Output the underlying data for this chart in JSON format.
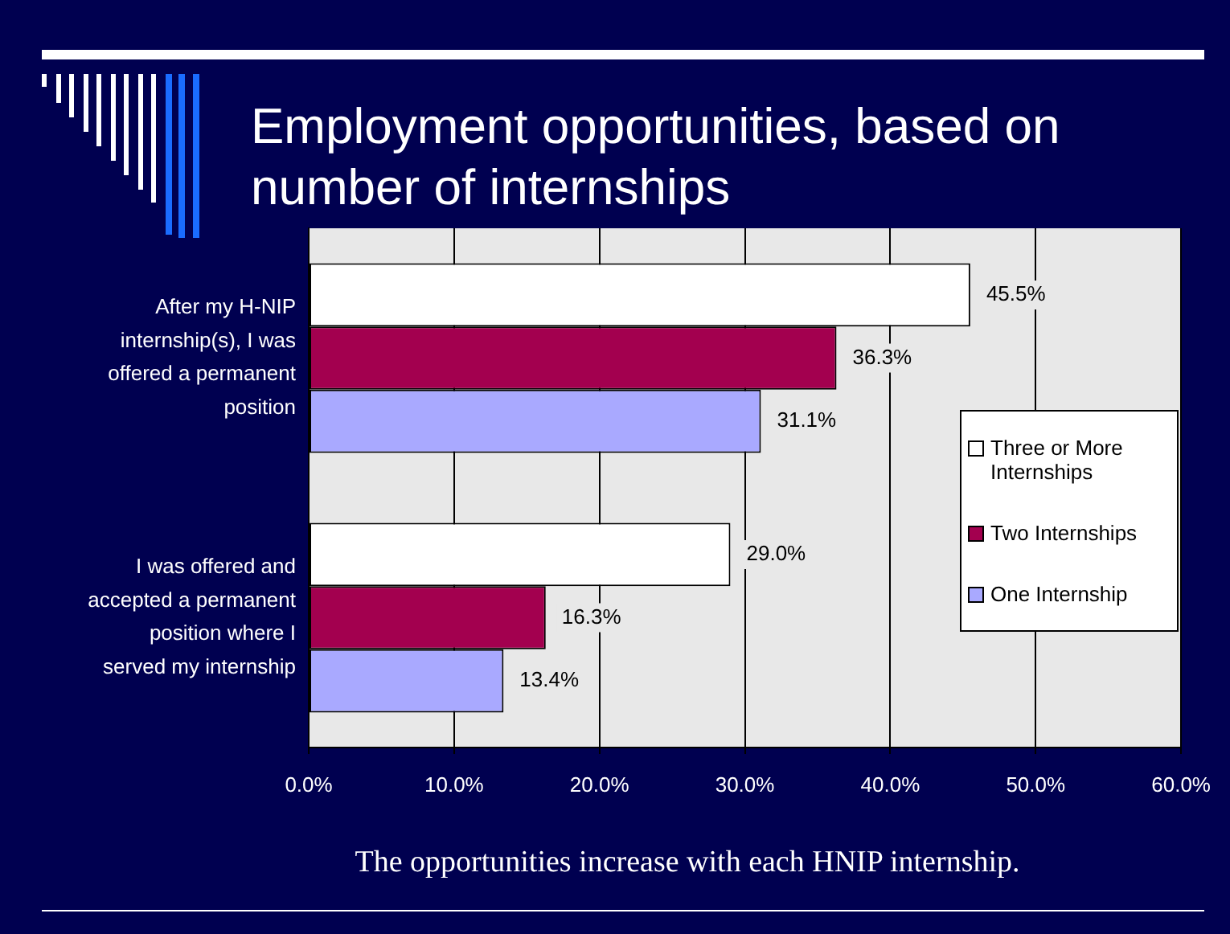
{
  "chart_data": {
    "type": "bar",
    "orientation": "horizontal",
    "title": "Employment opportunities, based on number of internships",
    "categories": [
      "After my H-NIP internship(s), I was offered a permanent position",
      "I was offered and accepted a permanent position where I served my internship"
    ],
    "series": [
      {
        "name": "Three or More Internships",
        "color": "#ffffff",
        "values": [
          45.5,
          29.0
        ],
        "value_labels": [
          "45.5%",
          "29.0%"
        ]
      },
      {
        "name": "Two Internships",
        "color": "#a3004f",
        "values": [
          36.3,
          16.3
        ],
        "value_labels": [
          "36.3%",
          "16.3%"
        ]
      },
      {
        "name": "One Internship",
        "color": "#a9a9ff",
        "values": [
          31.1,
          13.4
        ],
        "value_labels": [
          "31.1%",
          "13.4%"
        ]
      }
    ],
    "xlim": [
      0,
      60
    ],
    "xticks": [
      {
        "value": 0,
        "label": "0.0%"
      },
      {
        "value": 10,
        "label": "10.0%"
      },
      {
        "value": 20,
        "label": "20.0%"
      },
      {
        "value": 30,
        "label": "30.0%"
      },
      {
        "value": 40,
        "label": "40.0%"
      },
      {
        "value": 50,
        "label": "50.0%"
      },
      {
        "value": 60,
        "label": "60.0%"
      }
    ],
    "grid": "x",
    "legend": "right",
    "annotations": [
      "The opportunities increase with each HNIP internship."
    ]
  }
}
